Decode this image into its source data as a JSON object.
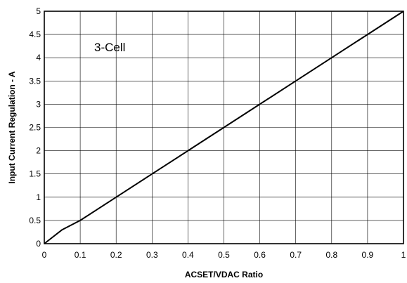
{
  "chart_data": {
    "type": "line",
    "title": "",
    "xlabel": "ACSET/VDAC Ratio",
    "ylabel": "Input Current Regulation - A",
    "xlim": [
      0,
      1
    ],
    "ylim": [
      0,
      5
    ],
    "xticks": [
      "0",
      "0.1",
      "0.2",
      "0.3",
      "0.4",
      "0.5",
      "0.6",
      "0.7",
      "0.8",
      "0.9",
      "1"
    ],
    "yticks": [
      "0",
      "0.5",
      "1",
      "1.5",
      "2",
      "2.5",
      "3",
      "3.5",
      "4",
      "4.5",
      "5"
    ],
    "grid": true,
    "annotation": "3-Cell",
    "series": [
      {
        "x": [
          0,
          0.05,
          0.1,
          0.2,
          0.3,
          0.4,
          0.45,
          0.5,
          0.6,
          0.7,
          0.8,
          0.9,
          1
        ],
        "y": [
          0,
          0.3,
          0.5,
          1.0,
          1.5,
          2.0,
          2.25,
          2.5,
          3.0,
          3.5,
          4.0,
          4.5,
          5.0
        ]
      }
    ]
  }
}
